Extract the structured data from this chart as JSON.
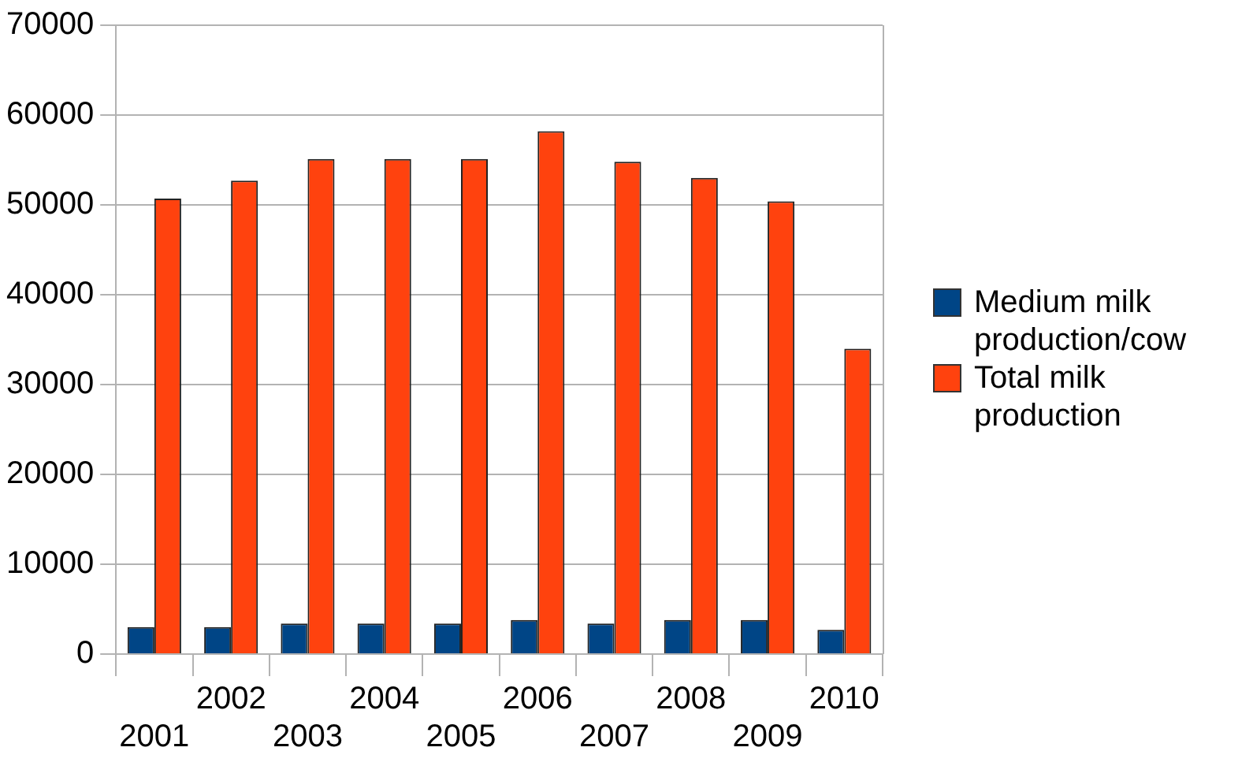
{
  "chart_data": {
    "type": "bar",
    "categories": [
      "2001",
      "2002",
      "2003",
      "2004",
      "2005",
      "2006",
      "2007",
      "2008",
      "2009",
      "2010"
    ],
    "series": [
      {
        "name": "Medium milk production/cow",
        "color": "#004586",
        "values": [
          3000,
          3000,
          3400,
          3400,
          3400,
          3800,
          3400,
          3800,
          3800,
          2700
        ]
      },
      {
        "name": "Total milk production",
        "color": "#ff420e",
        "values": [
          50700,
          52700,
          55100,
          55100,
          55100,
          58200,
          54800,
          53000,
          50400,
          34000
        ]
      }
    ],
    "ylim": [
      0,
      70000
    ],
    "yticks": [
      0,
      10000,
      20000,
      30000,
      40000,
      50000,
      60000,
      70000
    ],
    "grid": "y",
    "legend": "right"
  }
}
